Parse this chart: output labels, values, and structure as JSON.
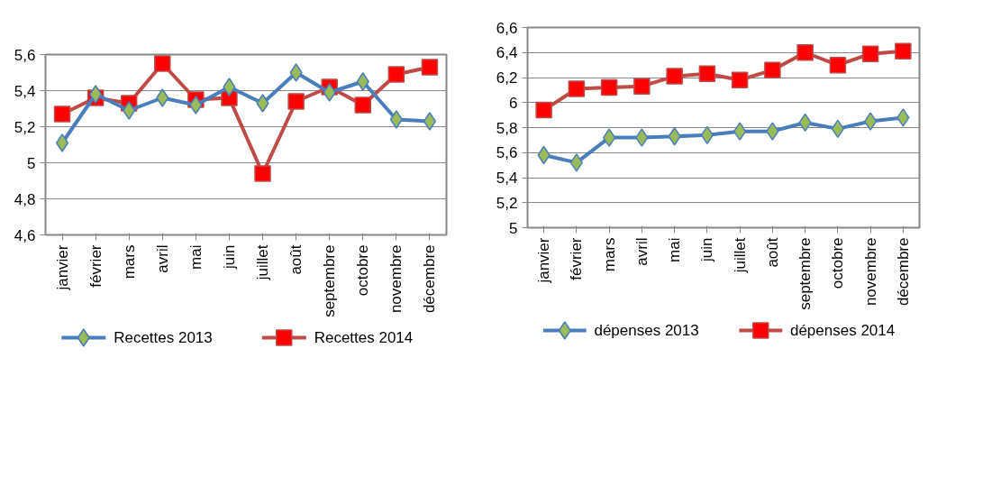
{
  "chart_data": [
    {
      "type": "line",
      "categories": [
        "janvier",
        "février",
        "mars",
        "avril",
        "mai",
        "juin",
        "juillet",
        "août",
        "septembre",
        "octobre",
        "novembre",
        "décembre"
      ],
      "series": [
        {
          "name": "Recettes 2013",
          "color": "#4a7ebb",
          "marker": "diamond",
          "values": [
            5.11,
            5.38,
            5.29,
            5.36,
            5.32,
            5.42,
            5.33,
            5.5,
            5.39,
            5.45,
            5.24,
            5.23
          ]
        },
        {
          "name": "Recettes 2014",
          "color": "#be4b48",
          "marker": "square",
          "values": [
            5.27,
            5.36,
            5.33,
            5.55,
            5.35,
            5.36,
            4.94,
            5.34,
            5.42,
            5.32,
            5.49,
            5.53
          ]
        }
      ],
      "ylim": [
        4.6,
        5.6
      ],
      "yticks": [
        {
          "value": 4.6,
          "label": "4,6"
        },
        {
          "value": 4.8,
          "label": "4,8"
        },
        {
          "value": 5,
          "label": "5"
        },
        {
          "value": 5.2,
          "label": "5,2"
        },
        {
          "value": 5.4,
          "label": "5,4"
        },
        {
          "value": 5.6,
          "label": "5,6"
        }
      ],
      "grid": "y",
      "legend": "bottom"
    },
    {
      "type": "line",
      "categories": [
        "janvier",
        "février",
        "mars",
        "avril",
        "mai",
        "juin",
        "juillet",
        "août",
        "septembre",
        "octobre",
        "novembre",
        "décembre"
      ],
      "series": [
        {
          "name": "dépenses 2013",
          "color": "#4a7ebb",
          "marker": "diamond",
          "values": [
            5.58,
            5.52,
            5.72,
            5.72,
            5.73,
            5.74,
            5.77,
            5.77,
            5.84,
            5.79,
            5.85,
            5.88
          ]
        },
        {
          "name": "dépenses 2014",
          "color": "#be4b48",
          "marker": "square",
          "values": [
            5.94,
            6.11,
            6.12,
            6.13,
            6.21,
            6.23,
            6.18,
            6.26,
            6.4,
            6.3,
            6.39,
            6.41
          ]
        }
      ],
      "ylim": [
        5,
        6.6
      ],
      "yticks": [
        {
          "value": 5,
          "label": "5"
        },
        {
          "value": 5.2,
          "label": "5,2"
        },
        {
          "value": 5.4,
          "label": "5,4"
        },
        {
          "value": 5.6,
          "label": "5,6"
        },
        {
          "value": 5.8,
          "label": "5,8"
        },
        {
          "value": 6,
          "label": "6"
        },
        {
          "value": 6.2,
          "label": "6,2"
        },
        {
          "value": 6.4,
          "label": "6,4"
        },
        {
          "value": 6.6,
          "label": "6,6"
        }
      ],
      "grid": "y",
      "legend": "bottom"
    }
  ]
}
